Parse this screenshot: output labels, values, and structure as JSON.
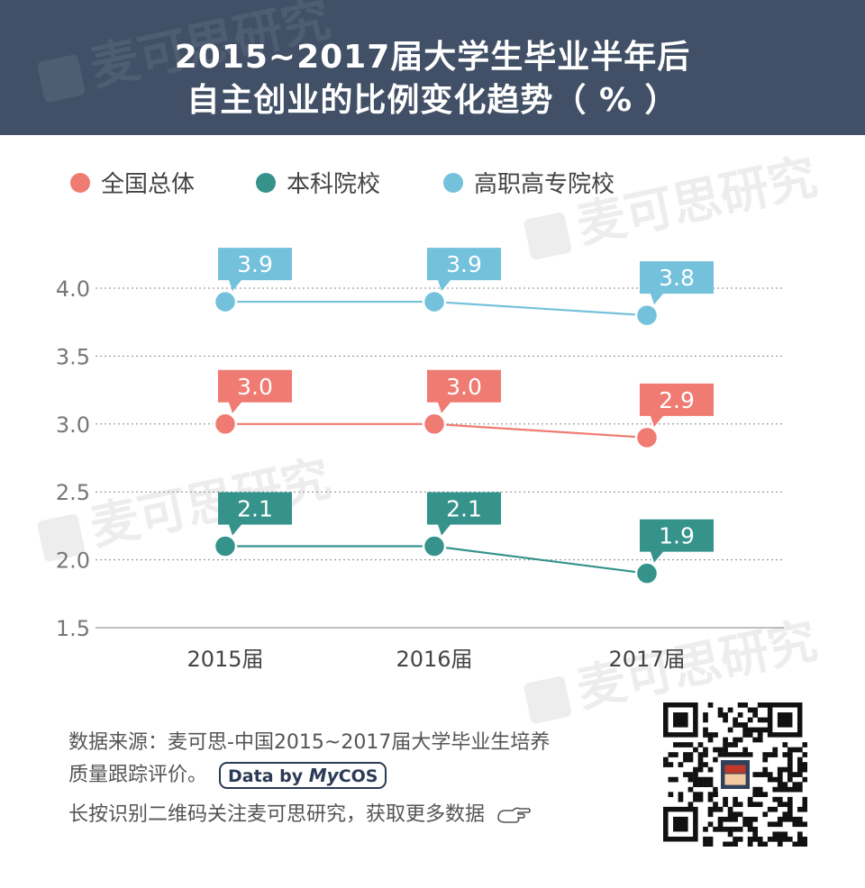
{
  "header": {
    "title_line1": "2015~2017届大学生毕业半年后",
    "title_line2": "自主创业的比例变化趋势（ % ）",
    "bg_color": "#415066"
  },
  "watermark_text": "麦可思研究",
  "chart_data": {
    "type": "line",
    "categories": [
      "2015届",
      "2016届",
      "2017届"
    ],
    "series": [
      {
        "name": "全国总体",
        "values": [
          3.0,
          3.0,
          2.9
        ],
        "labels": [
          "3.0",
          "3.0",
          "2.9"
        ],
        "color": "#ef7b72"
      },
      {
        "name": "本科院校",
        "values": [
          2.1,
          2.1,
          1.9
        ],
        "labels": [
          "2.1",
          "2.1",
          "1.9"
        ],
        "color": "#35938c"
      },
      {
        "name": "高职高专院校",
        "values": [
          3.9,
          3.9,
          3.8
        ],
        "labels": [
          "3.9",
          "3.9",
          "3.8"
        ],
        "color": "#74c1dc"
      }
    ],
    "yticks": [
      "4.0",
      "3.5",
      "3.0",
      "2.5",
      "2.0",
      "1.5"
    ],
    "ylim": [
      1.5,
      4.0
    ],
    "grid": true,
    "legend_position": "top"
  },
  "footer": {
    "source_line1": "数据来源：麦可思-中国2015~2017届大学毕业生培养",
    "source_line2": "质量跟踪评价。",
    "badge_prefix": "Data by ",
    "badge_brand_my": "My",
    "badge_brand_cos": "COS",
    "qr_prompt": "长按识别二维码关注麦可思研究，获取更多数据"
  },
  "icons": {
    "hand": "pointing-hand-icon",
    "qr": "qr-code-icon",
    "logo": "mycos-logo-icon"
  }
}
